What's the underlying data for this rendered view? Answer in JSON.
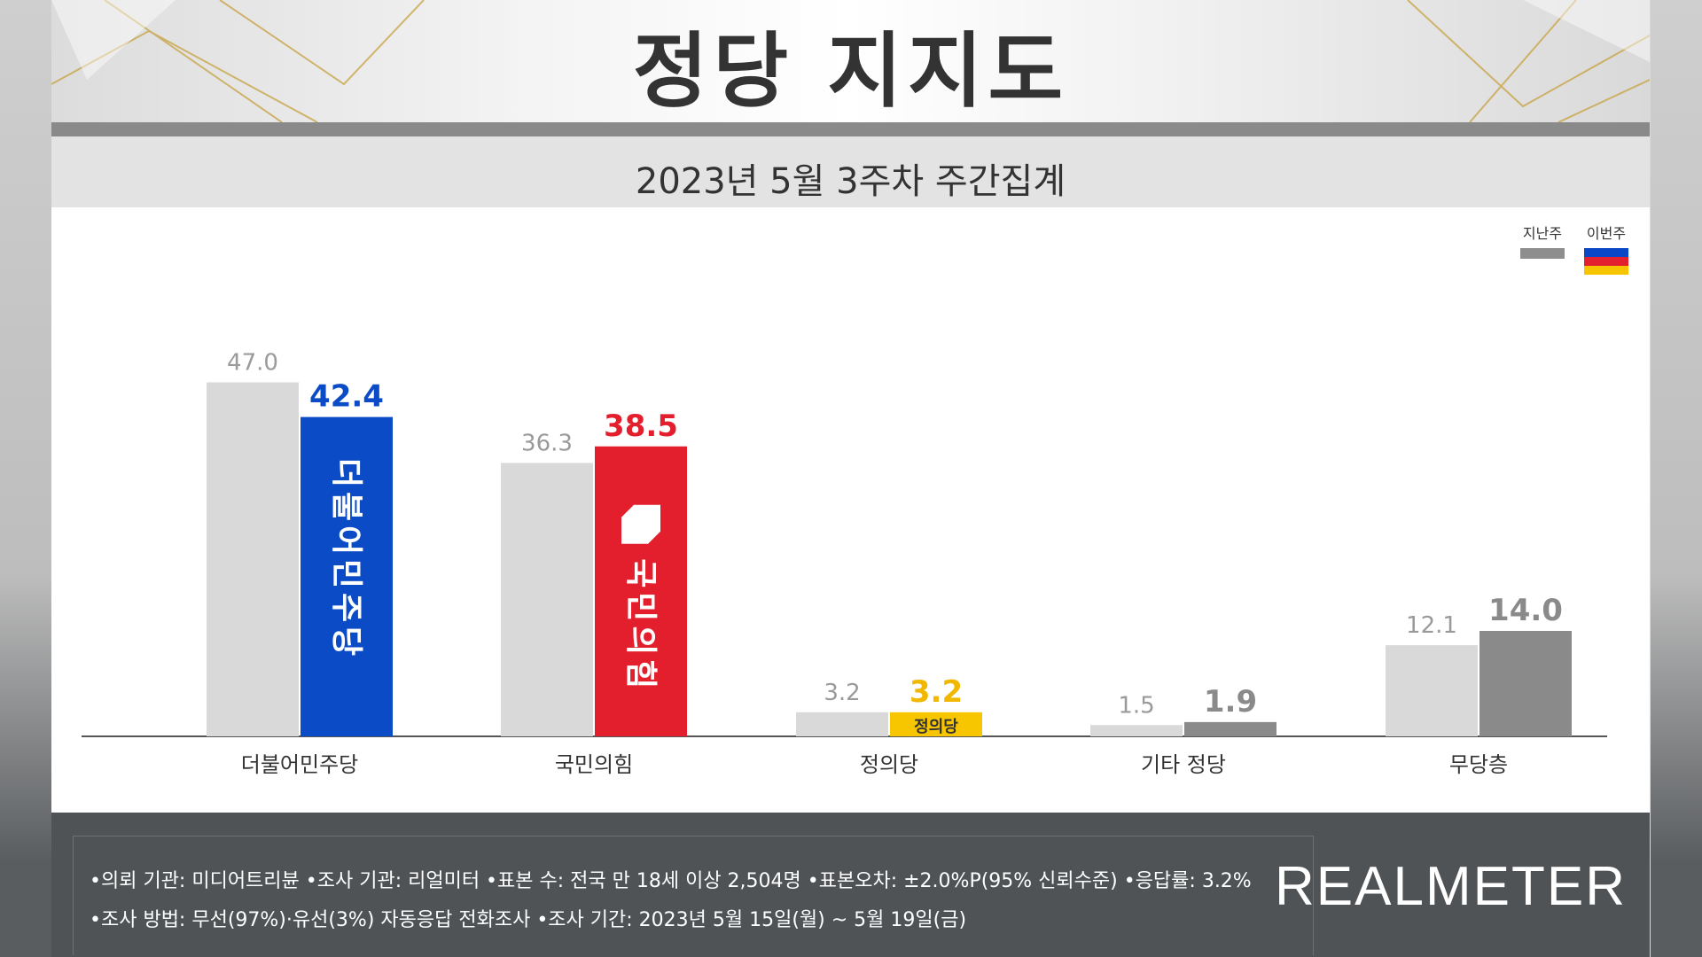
{
  "header": {
    "title": "정당 지지도",
    "subtitle": "2023년 5월 3주차 주간집계"
  },
  "legend": {
    "prev_label": "지난주",
    "curr_label": "이번주",
    "prev_color": "#8e8e8e",
    "flag_colors": [
      "#0a47c7",
      "#e3202e",
      "#f6c500"
    ]
  },
  "chart_data": {
    "type": "bar",
    "title": "정당 지지도",
    "subtitle": "2023년 5월 3주차 주간집계",
    "categories": [
      "더불어민주당",
      "국민의힘",
      "정의당",
      "기타 정당",
      "무당층"
    ],
    "series": [
      {
        "name": "지난주",
        "values": [
          47.0,
          36.3,
          3.2,
          1.5,
          12.1
        ],
        "color": "#d9d9d9"
      },
      {
        "name": "이번주",
        "values": [
          42.4,
          38.5,
          3.2,
          1.9,
          14.0
        ],
        "colors": [
          "#0b4cc6",
          "#e41f2d",
          "#f7c600",
          "#8a8a8a",
          "#8a8a8a"
        ]
      }
    ],
    "value_labels": {
      "prev": [
        "47.0",
        "36.3",
        "3.2",
        "1.5",
        "12.1"
      ],
      "curr": [
        "42.4",
        "38.5",
        "3.2",
        "1.9",
        "14.0"
      ]
    },
    "curr_label_colors": [
      "#0b4cc6",
      "#e41f2d",
      "#f2b800",
      "#8a8a8a",
      "#8a8a8a"
    ],
    "bar_logos": [
      "더불어민주당",
      "국민의힘",
      "정의당",
      "",
      ""
    ],
    "ylim": [
      0,
      50
    ],
    "grid": false,
    "legend_position": "top-right"
  },
  "footer": {
    "note_line_1": "•의뢰 기관: 미디어트리뷴  •조사 기관: 리얼미터 •표본 수: 전국 만 18세 이상 2,504명 •표본오차: ±2.0%P(95% 신뢰수준) •응답률: 3.2%",
    "note_line_2": "•조사 방법: 무선(97%)·유선(3%) 자동응답 전화조사 •조사 기간: 2023년 5월 15일(월) ~ 5월 19일(금)",
    "brand": "REALMETER"
  }
}
